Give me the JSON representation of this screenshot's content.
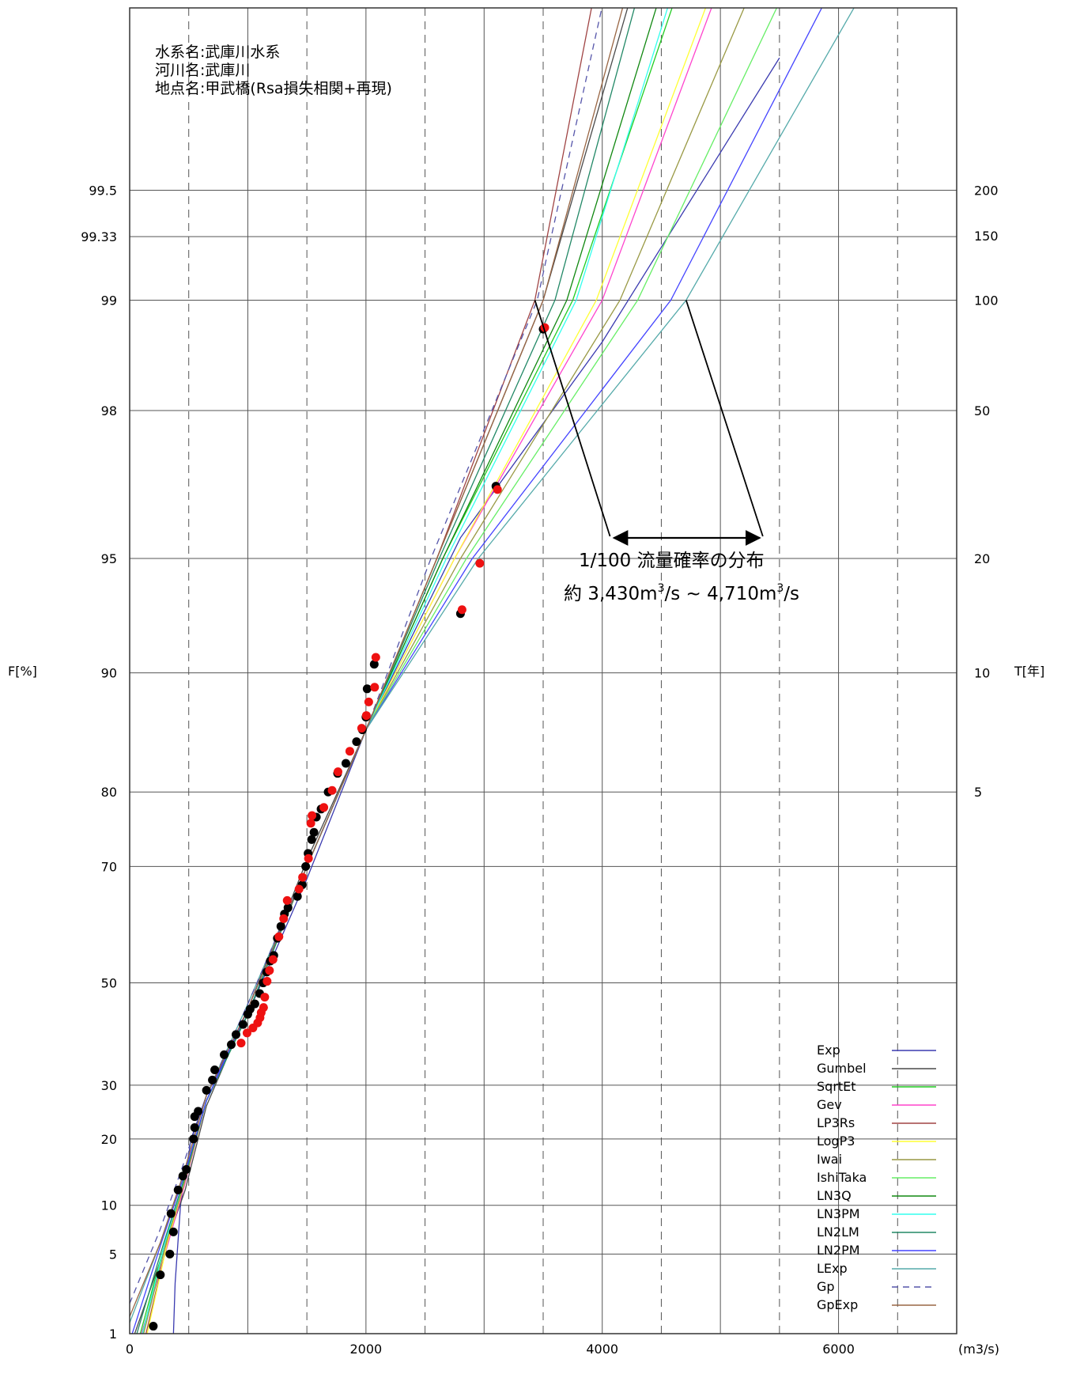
{
  "chart_data": {
    "type": "line",
    "info": {
      "line1": "水系名:武庫川水系",
      "line2": "河川名:武庫川",
      "line3": "地点名:甲武橋(Rsa損失相関+再現)"
    },
    "xlabel": "(m3/s)",
    "ylabel_left": "F[%]",
    "ylabel_right": "T[年]",
    "xlim": [
      0,
      7000
    ],
    "x_ticks_labeled": [
      "0",
      "2000",
      "4000",
      "6000"
    ],
    "x_grid_major": [
      0,
      1000,
      2000,
      3000,
      4000,
      5000,
      6000,
      7000
    ],
    "x_grid_minor": [
      500,
      1500,
      2500,
      3500,
      4500,
      5500,
      6500
    ],
    "f_ticks": [
      "1",
      "5",
      "10",
      "20",
      "30",
      "50",
      "70",
      "80",
      "90",
      "95",
      "98",
      "99",
      "99.33",
      "99.5"
    ],
    "t_ticks": [
      "5",
      "10",
      "20",
      "50",
      "100",
      "150",
      "200"
    ],
    "annotation": {
      "line1": "1/100 流量確率の分布",
      "line2_prefix": "約 3,430m",
      "line2_mid": "/s ~ 4,710m",
      "line2_suffix": "/s",
      "sup": "3",
      "range": [
        3430,
        4710
      ]
    },
    "series": [
      {
        "name": "Exp",
        "color": "#3a3ab0",
        "dash": false,
        "points": [
          [
            370,
            0.95
          ],
          [
            385,
            3
          ],
          [
            430,
            10
          ],
          [
            520,
            20
          ],
          [
            650,
            28
          ],
          [
            1000,
            44
          ],
          [
            1500,
            68
          ],
          [
            2000,
            86
          ],
          [
            2800,
            95.6
          ],
          [
            4000,
            98.7
          ],
          [
            5500,
            99.7
          ]
        ]
      },
      {
        "name": "Gumbel",
        "color": "#4a4a4a",
        "dash": false,
        "points": [
          [
            30,
            0.9
          ],
          [
            280,
            5
          ],
          [
            470,
            12
          ],
          [
            650,
            26
          ],
          [
            1000,
            45
          ],
          [
            1500,
            71
          ],
          [
            2000,
            86
          ],
          [
            2600,
            95
          ],
          [
            3500,
            99
          ],
          [
            4350,
            99.8
          ]
        ]
      },
      {
        "name": "SqrtEt",
        "color": "#22cc22",
        "dash": false,
        "points": [
          [
            80,
            0.9
          ],
          [
            300,
            6
          ],
          [
            470,
            14
          ],
          [
            650,
            27
          ],
          [
            1000,
            44
          ],
          [
            1500,
            70
          ],
          [
            2000,
            86
          ],
          [
            2650,
            95
          ],
          [
            3750,
            99
          ],
          [
            4750,
            99.8
          ]
        ]
      },
      {
        "name": "Gev",
        "color": "#ff44cc",
        "dash": false,
        "points": [
          [
            90,
            0.9
          ],
          [
            300,
            5
          ],
          [
            470,
            13
          ],
          [
            650,
            27
          ],
          [
            1000,
            44
          ],
          [
            1500,
            70
          ],
          [
            2000,
            86
          ],
          [
            2750,
            95
          ],
          [
            4000,
            99
          ],
          [
            5100,
            99.8
          ]
        ]
      },
      {
        "name": "LP3Rs",
        "color": "#a04444",
        "dash": false,
        "points": [
          [
            130,
            0.9
          ],
          [
            320,
            6
          ],
          [
            480,
            14
          ],
          [
            650,
            27
          ],
          [
            1000,
            44
          ],
          [
            1500,
            70
          ],
          [
            2000,
            86
          ],
          [
            2600,
            95
          ],
          [
            3430,
            99
          ],
          [
            4000,
            99.8
          ]
        ]
      },
      {
        "name": "LogP3",
        "color": "#ffff33",
        "dash": false,
        "points": [
          [
            140,
            0.9
          ],
          [
            320,
            6
          ],
          [
            480,
            14
          ],
          [
            650,
            27
          ],
          [
            1000,
            44
          ],
          [
            1500,
            70
          ],
          [
            2000,
            86
          ],
          [
            2750,
            95
          ],
          [
            3950,
            99
          ],
          [
            5050,
            99.8
          ]
        ]
      },
      {
        "name": "Iwai",
        "color": "#999944",
        "dash": false,
        "points": [
          [
            110,
            0.9
          ],
          [
            310,
            6
          ],
          [
            480,
            14
          ],
          [
            650,
            27
          ],
          [
            1000,
            44
          ],
          [
            1500,
            70
          ],
          [
            2000,
            86
          ],
          [
            2800,
            95
          ],
          [
            4150,
            99
          ],
          [
            5400,
            99.8
          ]
        ]
      },
      {
        "name": "IshiTaka",
        "color": "#66ee66",
        "dash": false,
        "points": [
          [
            100,
            0.9
          ],
          [
            300,
            6
          ],
          [
            470,
            14
          ],
          [
            650,
            27
          ],
          [
            1000,
            44
          ],
          [
            1500,
            70
          ],
          [
            2000,
            86
          ],
          [
            2850,
            95
          ],
          [
            4300,
            99
          ],
          [
            5700,
            99.8
          ]
        ]
      },
      {
        "name": "LN3Q",
        "color": "#118811",
        "dash": false,
        "points": [
          [
            100,
            0.9
          ],
          [
            300,
            6
          ],
          [
            470,
            14
          ],
          [
            650,
            27
          ],
          [
            1000,
            44
          ],
          [
            1500,
            70
          ],
          [
            2000,
            86
          ],
          [
            2650,
            95
          ],
          [
            3700,
            99
          ],
          [
            4600,
            99.8
          ]
        ]
      },
      {
        "name": "LN3PM",
        "color": "#33ffee",
        "dash": false,
        "points": [
          [
            100,
            0.9
          ],
          [
            300,
            6
          ],
          [
            470,
            14
          ],
          [
            650,
            27
          ],
          [
            1000,
            44
          ],
          [
            1500,
            70
          ],
          [
            2000,
            86
          ],
          [
            2680,
            95
          ],
          [
            3780,
            99
          ],
          [
            4700,
            99.8
          ]
        ]
      },
      {
        "name": "LN2LM",
        "color": "#228866",
        "dash": false,
        "points": [
          [
            50,
            0.9
          ],
          [
            290,
            6
          ],
          [
            470,
            14
          ],
          [
            650,
            27
          ],
          [
            1000,
            44
          ],
          [
            1500,
            70
          ],
          [
            2000,
            86
          ],
          [
            2620,
            95
          ],
          [
            3600,
            99
          ],
          [
            4400,
            99.8
          ]
        ]
      },
      {
        "name": "LN2PM",
        "color": "#4444ff",
        "dash": false,
        "points": [
          [
            10,
            0.9
          ],
          [
            270,
            6
          ],
          [
            460,
            14
          ],
          [
            650,
            27
          ],
          [
            1000,
            45
          ],
          [
            1500,
            70
          ],
          [
            2000,
            86
          ],
          [
            2900,
            95
          ],
          [
            4580,
            99
          ],
          [
            6100,
            99.8
          ]
        ]
      },
      {
        "name": "LExp",
        "color": "#55aaaa",
        "dash": false,
        "points": [
          [
            0,
            1.3
          ],
          [
            260,
            6
          ],
          [
            450,
            14
          ],
          [
            650,
            28
          ],
          [
            1000,
            46
          ],
          [
            1500,
            70
          ],
          [
            2000,
            86
          ],
          [
            2950,
            95
          ],
          [
            4710,
            99
          ],
          [
            6400,
            99.8
          ]
        ]
      },
      {
        "name": "Gp",
        "color": "#5555aa",
        "dash": true,
        "points": [
          [
            0,
            2
          ],
          [
            250,
            7
          ],
          [
            440,
            15
          ],
          [
            650,
            28
          ],
          [
            1000,
            46
          ],
          [
            1500,
            70
          ],
          [
            2000,
            86
          ],
          [
            2550,
            95
          ],
          [
            3450,
            99
          ],
          [
            4100,
            99.8
          ]
        ]
      },
      {
        "name": "GpExp",
        "color": "#996644",
        "dash": false,
        "points": [
          [
            0,
            1.5
          ],
          [
            260,
            6
          ],
          [
            450,
            14
          ],
          [
            650,
            28
          ],
          [
            1000,
            45
          ],
          [
            1500,
            70
          ],
          [
            2000,
            86
          ],
          [
            2600,
            95
          ],
          [
            3500,
            99
          ],
          [
            4300,
            99.8
          ]
        ]
      }
    ],
    "observed_black": [
      [
        200,
        1.2
      ],
      [
        260,
        3.5
      ],
      [
        340,
        5
      ],
      [
        370,
        7
      ],
      [
        350,
        9
      ],
      [
        410,
        12
      ],
      [
        450,
        14
      ],
      [
        480,
        15
      ],
      [
        540,
        20
      ],
      [
        550,
        22
      ],
      [
        550,
        24
      ],
      [
        580,
        25
      ],
      [
        650,
        29
      ],
      [
        700,
        31
      ],
      [
        720,
        33
      ],
      [
        800,
        36
      ],
      [
        860,
        38
      ],
      [
        900,
        40
      ],
      [
        960,
        42
      ],
      [
        1000,
        44
      ],
      [
        1020,
        45
      ],
      [
        1060,
        46
      ],
      [
        1100,
        48
      ],
      [
        1130,
        50
      ],
      [
        1160,
        52
      ],
      [
        1190,
        54
      ],
      [
        1220,
        55
      ],
      [
        1250,
        58
      ],
      [
        1280,
        60
      ],
      [
        1310,
        62
      ],
      [
        1340,
        63
      ],
      [
        1420,
        65
      ],
      [
        1460,
        67
      ],
      [
        1490,
        70
      ],
      [
        1510,
        72
      ],
      [
        1540,
        74
      ],
      [
        1560,
        75
      ],
      [
        1580,
        77
      ],
      [
        1620,
        78
      ],
      [
        1680,
        80
      ],
      [
        1760,
        82
      ],
      [
        1830,
        83
      ],
      [
        1920,
        85
      ],
      [
        1970,
        86
      ],
      [
        2000,
        87
      ],
      [
        2010,
        89
      ],
      [
        2070,
        90.5
      ],
      [
        2800,
        93
      ],
      [
        3100,
        96.8
      ],
      [
        3500,
        98.8
      ]
    ],
    "observed_red": [
      [
        930,
        38
      ],
      [
        980,
        40
      ],
      [
        1030,
        41
      ],
      [
        1070,
        42
      ],
      [
        1090,
        43
      ],
      [
        1100,
        44
      ],
      [
        1120,
        45
      ],
      [
        1130,
        47
      ],
      [
        1150,
        50
      ],
      [
        1170,
        52
      ],
      [
        1200,
        54
      ],
      [
        1250,
        58
      ],
      [
        1290,
        61
      ],
      [
        1320,
        64
      ],
      [
        1420,
        66
      ],
      [
        1450,
        68
      ],
      [
        1500,
        71
      ],
      [
        1520,
        76
      ],
      [
        1530,
        77
      ],
      [
        1630,
        78
      ],
      [
        1700,
        80
      ],
      [
        1750,
        82
      ],
      [
        1850,
        84
      ],
      [
        1950,
        86
      ],
      [
        1990,
        87
      ],
      [
        2010,
        88
      ],
      [
        2060,
        89
      ],
      [
        2070,
        90.8
      ],
      [
        2800,
        93.1
      ],
      [
        2950,
        94.8
      ],
      [
        3100,
        96.7
      ],
      [
        3500,
        98.8
      ]
    ]
  }
}
